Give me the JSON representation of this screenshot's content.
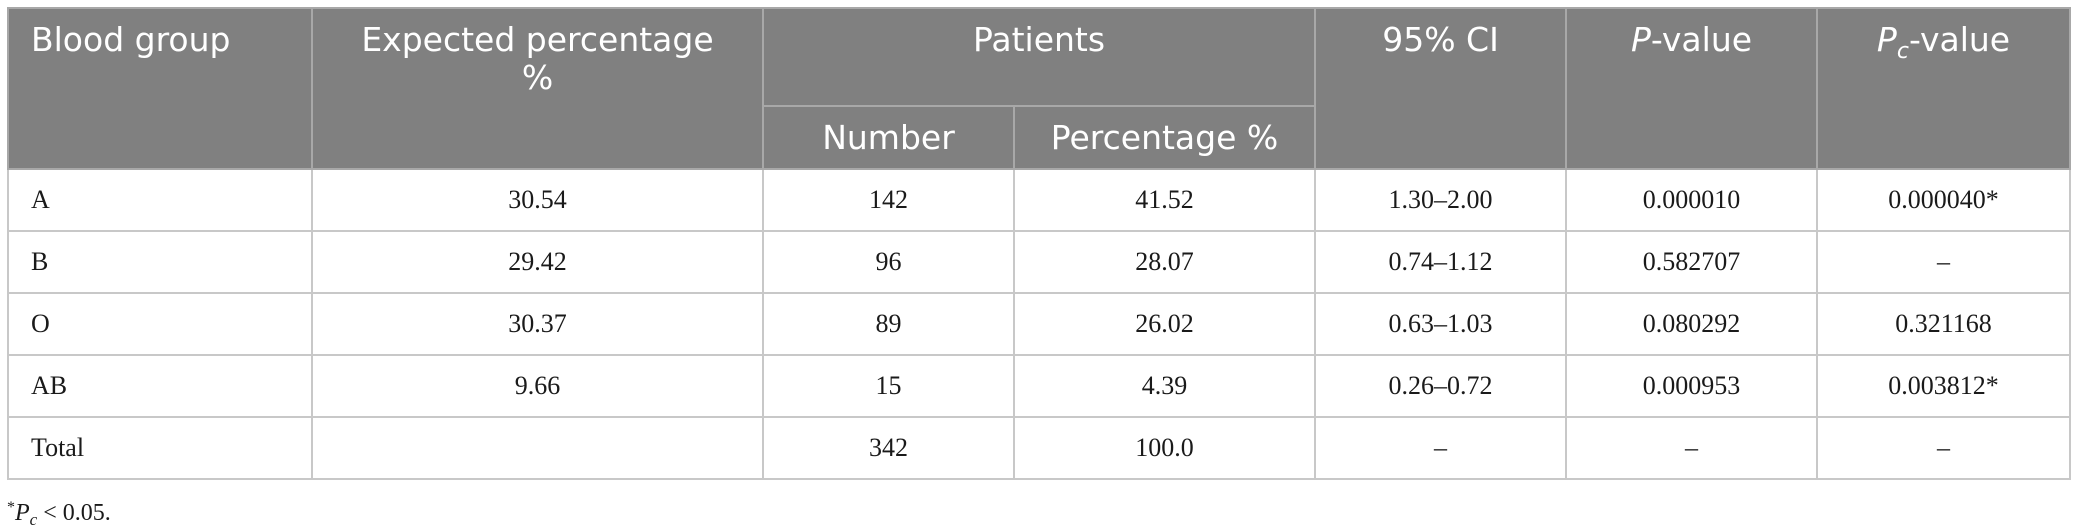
{
  "table": {
    "headers": {
      "blood_group": "Blood group",
      "expected_line1": "Expected percentage",
      "expected_line2": "%",
      "patients": "Patients",
      "number": "Number",
      "percentage": "Percentage %",
      "ci": "95% CI",
      "p_letter": "P",
      "p_suffix": "-value",
      "pc_letter": "P",
      "pc_sub": "c",
      "pc_suffix": "-value"
    },
    "rows": [
      {
        "group": "A",
        "expected": "30.54",
        "number": "142",
        "percentage": "41.52",
        "ci": "1.30–2.00",
        "p": "0.000010",
        "pc": "0.000040*"
      },
      {
        "group": "B",
        "expected": "29.42",
        "number": "96",
        "percentage": "28.07",
        "ci": "0.74–1.12",
        "p": "0.582707",
        "pc": "–"
      },
      {
        "group": "O",
        "expected": "30.37",
        "number": "89",
        "percentage": "26.02",
        "ci": "0.63–1.03",
        "p": "0.080292",
        "pc": "0.321168"
      },
      {
        "group": "AB",
        "expected": "9.66",
        "number": "15",
        "percentage": "4.39",
        "ci": "0.26–0.72",
        "p": "0.000953",
        "pc": "0.003812*"
      },
      {
        "group": "Total",
        "expected": "",
        "number": "342",
        "percentage": "100.0",
        "ci": "–",
        "p": "–",
        "pc": "–"
      }
    ]
  },
  "footnote": {
    "mark": "*",
    "p_letter": "P",
    "p_sub": "c",
    "rest": " < 0.05."
  },
  "colors": {
    "header_bg": "#808080",
    "header_text": "#ffffff",
    "grid": "#c8c8c8"
  }
}
